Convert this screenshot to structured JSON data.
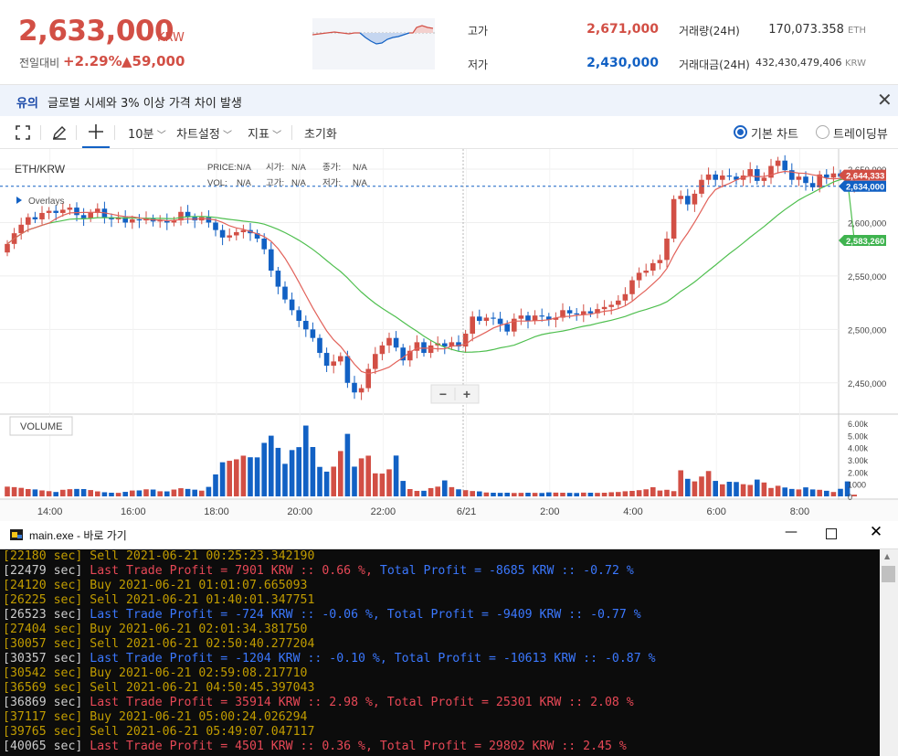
{
  "ticker": {
    "price": "2,633,000",
    "unit": "KRW",
    "change_label": "전일대비",
    "change_pct": "+2.29%",
    "change_amt": "▲59,000",
    "high_label": "고가",
    "high_value": "2,671,000",
    "low_label": "저가",
    "low_value": "2,430,000",
    "volume_label": "거래량(24H)",
    "volume_value": "170,073.358",
    "volume_unit": "ETH",
    "amount_label": "거래대금(24H)",
    "amount_value": "432,430,479,406",
    "amount_unit": "KRW"
  },
  "warning": {
    "tag": "유의",
    "text": "글로벌 시세와 3% 이상 가격 차이 발생",
    "close_icon": "close-icon"
  },
  "toolbar": {
    "fullscreen_icon": "fullscreen-icon",
    "draw_icon": "pencil-icon",
    "crosshair_icon": "crosshair-icon",
    "interval": "10분",
    "chart_settings": "차트설정",
    "indicators": "지표",
    "reset": "초기화",
    "basic_chart": "기본 차트",
    "trading_view": "트레이딩뷰",
    "selected_chart": "기본 차트"
  },
  "chart_data": {
    "type": "candlestick",
    "symbol": "ETH/KRW",
    "info": {
      "price_label": "PRICE:",
      "price": "N/A",
      "open_label": "시가:",
      "open": "N/A",
      "close_label": "종가:",
      "close": "N/A",
      "vol_label": "VOL:",
      "vol": "N/A",
      "high_label": "고가:",
      "high": "N/A",
      "low_label": "저가:",
      "low": "N/A"
    },
    "overlays_label": "Overlays",
    "volume_label": "VOLUME",
    "zoom_out": "−",
    "zoom_in": "+",
    "y_ticks": [
      "2,650,000",
      "2,600,000",
      "2,550,000",
      "2,500,000",
      "2,450,000"
    ],
    "y_tick_values": [
      2650000,
      2600000,
      2550000,
      2500000,
      2450000
    ],
    "ylim": [
      2425000,
      2662000
    ],
    "vol_ticks": [
      "6.00k",
      "5.00k",
      "4.00k",
      "3.00k",
      "2.00k",
      "1000",
      "0"
    ],
    "vol_tick_values": [
      6000,
      5000,
      4000,
      3000,
      2000,
      1000,
      0
    ],
    "vol_ylim": [
      0,
      6600
    ],
    "x_ticks": [
      "14:00",
      "16:00",
      "18:00",
      "20:00",
      "22:00",
      "6/21",
      "2:00",
      "4:00",
      "6:00",
      "8:00"
    ],
    "price_tags": {
      "ma_short": "2,644,333",
      "last": "2,634,000",
      "ma_long": "2,583,260"
    },
    "last_price": 2634000,
    "ma_short_last": 2644333,
    "ma_long_last": 2583260,
    "colors": {
      "up": "#d24f45",
      "down": "#1261c4",
      "ma_short": "#e2625a",
      "ma_long": "#4fbf4f"
    },
    "closes": [
      2580000,
      2590000,
      2598000,
      2605000,
      2603000,
      2609000,
      2611000,
      2609000,
      2612000,
      2614000,
      2607000,
      2604000,
      2609000,
      2613000,
      2605000,
      2603000,
      2605000,
      2600000,
      2603000,
      2602000,
      2604000,
      2601000,
      2602000,
      2600000,
      2602000,
      2610000,
      2605000,
      2602000,
      2605000,
      2600000,
      2593000,
      2586000,
      2588000,
      2591000,
      2593000,
      2590000,
      2585000,
      2575000,
      2555000,
      2540000,
      2528000,
      2518000,
      2508000,
      2500000,
      2492000,
      2478000,
      2466000,
      2470000,
      2475000,
      2450000,
      2441000,
      2445000,
      2463000,
      2477000,
      2485000,
      2492000,
      2483000,
      2471000,
      2480000,
      2488000,
      2478000,
      2485000,
      2487000,
      2484000,
      2488000,
      2484000,
      2496000,
      2512000,
      2508000,
      2511000,
      2510000,
      2505000,
      2498000,
      2510000,
      2513000,
      2508000,
      2513000,
      2512000,
      2509000,
      2511000,
      2518000,
      2515000,
      2514000,
      2517000,
      2515000,
      2519000,
      2521000,
      2523000,
      2527000,
      2533000,
      2546000,
      2553000,
      2555000,
      2562000,
      2565000,
      2585000,
      2622000,
      2625000,
      2617000,
      2627000,
      2640000,
      2645000,
      2640000,
      2644000,
      2643000,
      2640000,
      2644000,
      2650000,
      2639000,
      2642000,
      2653000,
      2658000,
      2649000,
      2640000,
      2643000,
      2637000,
      2633000,
      2645000,
      2642000,
      2646000,
      2643000,
      2634000,
      2634000
    ],
    "volumes": [
      800,
      760,
      700,
      600,
      570,
      490,
      430,
      360,
      540,
      590,
      610,
      600,
      520,
      410,
      340,
      300,
      290,
      370,
      480,
      490,
      580,
      560,
      420,
      410,
      560,
      670,
      610,
      550,
      470,
      780,
      1800,
      2800,
      2920,
      3040,
      3340,
      3210,
      3200,
      4390,
      4980,
      3980,
      2670,
      3800,
      4040,
      5810,
      4050,
      2420,
      2030,
      2440,
      3720,
      5130,
      2440,
      3120,
      3340,
      1890,
      1870,
      2220,
      3350,
      1270,
      600,
      450,
      460,
      680,
      800,
      1310,
      760,
      580,
      510,
      440,
      410,
      320,
      300,
      290,
      300,
      280,
      290,
      300,
      290,
      280,
      330,
      310,
      300,
      290,
      280,
      310,
      300,
      290,
      300,
      340,
      360,
      420,
      450,
      510,
      580,
      750,
      480,
      540,
      430,
      2140,
      1440,
      1230,
      1630,
      2080,
      1270,
      990,
      1200,
      1180,
      1000,
      940,
      1380,
      1140,
      690,
      870,
      730,
      610,
      570,
      740,
      570,
      540,
      460,
      360,
      620,
      1230,
      140
    ]
  },
  "console": {
    "window_title": "main.exe - 바로 가기",
    "app_icon": "app-icon",
    "min_icon": "minimize-icon",
    "max_icon": "maximize-icon",
    "close_icon": "close-icon",
    "lines": [
      {
        "ts": "[22180 sec]",
        "msg": " Sell 2021-06-21 00:25:23.342190",
        "ts_color": "y",
        "msg_color": "y"
      },
      {
        "ts": "[22479 sec]",
        "msg": " Last Trade Profit = 7901 KRW :: 0.66 %, Total Profit = -8685 KRW :: -0.72 %",
        "ts_color": "w",
        "msg_color": "r",
        "split_at": "Total Profit",
        "split_color": "b"
      },
      {
        "ts": "[24120 sec]",
        "msg": " Buy 2021-06-21 01:01:07.665093",
        "ts_color": "y",
        "msg_color": "y"
      },
      {
        "ts": "[26225 sec]",
        "msg": " Sell 2021-06-21 01:40:01.347751",
        "ts_color": "y",
        "msg_color": "y"
      },
      {
        "ts": "[26523 sec]",
        "msg": " Last Trade Profit = -724 KRW :: -0.06 %, Total Profit = -9409 KRW :: -0.77 %",
        "ts_color": "w",
        "msg_color": "b"
      },
      {
        "ts": "[27404 sec]",
        "msg": " Buy 2021-06-21 02:01:34.381750",
        "ts_color": "y",
        "msg_color": "y"
      },
      {
        "ts": "[30057 sec]",
        "msg": " Sell 2021-06-21 02:50:40.277204",
        "ts_color": "y",
        "msg_color": "y"
      },
      {
        "ts": "[30357 sec]",
        "msg": " Last Trade Profit = -1204 KRW :: -0.10 %, Total Profit = -10613 KRW :: -0.87 %",
        "ts_color": "w",
        "msg_color": "b"
      },
      {
        "ts": "[30542 sec]",
        "msg": " Buy 2021-06-21 02:59:08.217710",
        "ts_color": "y",
        "msg_color": "y"
      },
      {
        "ts": "[36569 sec]",
        "msg": " Sell 2021-06-21 04:50:45.397043",
        "ts_color": "y",
        "msg_color": "y"
      },
      {
        "ts": "[36869 sec]",
        "msg": " Last Trade Profit = 35914 KRW :: 2.98 %, Total Profit = 25301 KRW :: 2.08 %",
        "ts_color": "w",
        "msg_color": "r"
      },
      {
        "ts": "[37117 sec]",
        "msg": " Buy 2021-06-21 05:00:24.026294",
        "ts_color": "y",
        "msg_color": "y"
      },
      {
        "ts": "[39765 sec]",
        "msg": " Sell 2021-06-21 05:49:07.047117",
        "ts_color": "y",
        "msg_color": "y"
      },
      {
        "ts": "[40065 sec]",
        "msg": " Last Trade Profit = 4501 KRW :: 0.36 %, Total Profit = 29802 KRW :: 2.45 %",
        "ts_color": "w",
        "msg_color": "r"
      }
    ]
  }
}
